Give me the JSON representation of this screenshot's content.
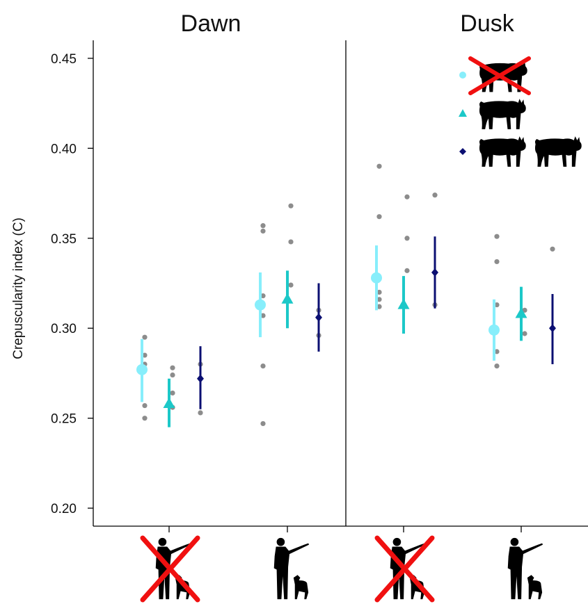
{
  "chart_data": {
    "type": "scatter",
    "panels": [
      "Dawn",
      "Dusk"
    ],
    "ylabel": "Crepuscularity index (C)",
    "ylim": [
      0.19,
      0.46
    ],
    "yticks": [
      0.2,
      0.25,
      0.3,
      0.35,
      0.4,
      0.45
    ],
    "ytick_labels": [
      "0.20",
      "0.25",
      "0.30",
      "0.35",
      "0.40",
      "0.45"
    ],
    "x_groups": [
      {
        "icon": "hunter-with-dog-icon",
        "crossed": true
      },
      {
        "icon": "hunter-with-dog-icon",
        "crossed": false
      }
    ],
    "series": [
      {
        "legend_icon": "lynx-crossed-icon",
        "marker": "circle",
        "color": "#87EEFB"
      },
      {
        "legend_icon": "one-lynx-icon",
        "marker": "triangle",
        "color": "#1CC8C8"
      },
      {
        "legend_icon": "two-lynx-icon",
        "marker": "diamond",
        "color": "#0B0F72"
      }
    ],
    "points": [
      {
        "panel": "Dawn",
        "group": 0,
        "series": 0,
        "mean": 0.277,
        "lo": 0.259,
        "hi": 0.294,
        "raw": [
          0.295,
          0.285,
          0.28,
          0.257,
          0.25
        ]
      },
      {
        "panel": "Dawn",
        "group": 0,
        "series": 1,
        "mean": 0.258,
        "lo": 0.245,
        "hi": 0.272,
        "raw": [
          0.278,
          0.274,
          0.264,
          0.256
        ]
      },
      {
        "panel": "Dawn",
        "group": 0,
        "series": 2,
        "mean": 0.272,
        "lo": 0.255,
        "hi": 0.29,
        "raw": [
          0.28,
          0.253
        ]
      },
      {
        "panel": "Dawn",
        "group": 1,
        "series": 0,
        "mean": 0.313,
        "lo": 0.295,
        "hi": 0.331,
        "raw": [
          0.357,
          0.354,
          0.318,
          0.307,
          0.279,
          0.247
        ]
      },
      {
        "panel": "Dawn",
        "group": 1,
        "series": 1,
        "mean": 0.316,
        "lo": 0.3,
        "hi": 0.332,
        "raw": [
          0.368,
          0.348,
          0.324
        ]
      },
      {
        "panel": "Dawn",
        "group": 1,
        "series": 2,
        "mean": 0.306,
        "lo": 0.287,
        "hi": 0.325,
        "raw": [
          0.31,
          0.296
        ]
      },
      {
        "panel": "Dusk",
        "group": 0,
        "series": 0,
        "mean": 0.328,
        "lo": 0.31,
        "hi": 0.346,
        "raw": [
          0.39,
          0.362,
          0.32,
          0.316,
          0.312
        ]
      },
      {
        "panel": "Dusk",
        "group": 0,
        "series": 1,
        "mean": 0.313,
        "lo": 0.297,
        "hi": 0.329,
        "raw": [
          0.373,
          0.35,
          0.332
        ]
      },
      {
        "panel": "Dusk",
        "group": 0,
        "series": 2,
        "mean": 0.331,
        "lo": 0.311,
        "hi": 0.351,
        "raw": [
          0.374,
          0.313
        ]
      },
      {
        "panel": "Dusk",
        "group": 1,
        "series": 0,
        "mean": 0.299,
        "lo": 0.282,
        "hi": 0.316,
        "raw": [
          0.351,
          0.337,
          0.313,
          0.287,
          0.279
        ]
      },
      {
        "panel": "Dusk",
        "group": 1,
        "series": 1,
        "mean": 0.308,
        "lo": 0.293,
        "hi": 0.323,
        "raw": [
          0.31,
          0.297
        ]
      },
      {
        "panel": "Dusk",
        "group": 1,
        "series": 2,
        "mean": 0.3,
        "lo": 0.28,
        "hi": 0.319,
        "raw": [
          0.344,
          0.3
        ]
      }
    ]
  }
}
